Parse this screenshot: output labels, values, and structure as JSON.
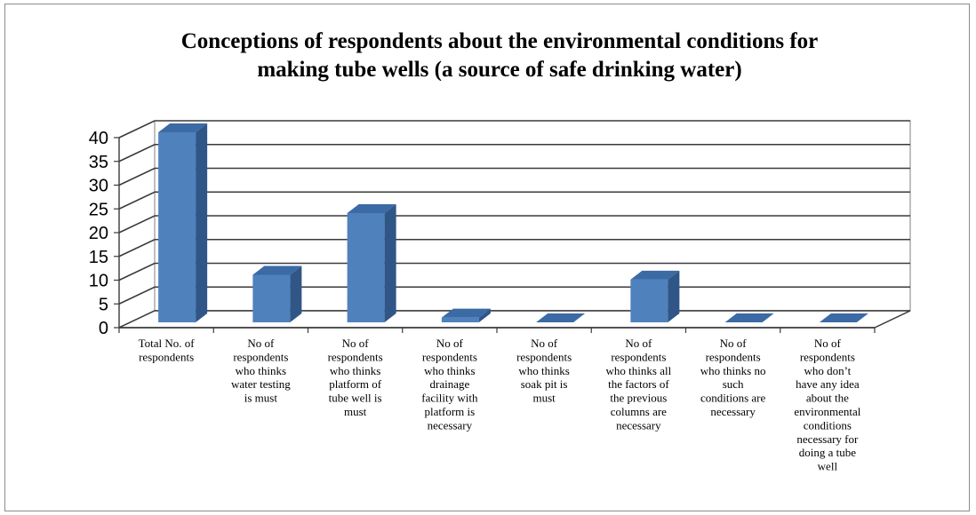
{
  "chart_data": {
    "type": "bar",
    "title_lines": [
      "Conceptions of respondents about the environmental conditions for",
      "making tube wells (a source of safe drinking water)"
    ],
    "xlabel": "",
    "ylabel": "",
    "ylim": [
      0,
      40
    ],
    "yticks": [
      0,
      5,
      10,
      15,
      20,
      25,
      30,
      35,
      40
    ],
    "grid": true,
    "legend": "none",
    "bar_color": "#4f81bd",
    "categories": [
      [
        "Total No. of",
        "respondents"
      ],
      [
        "No of",
        "respondents",
        "who thinks",
        "water testing",
        "is must"
      ],
      [
        "No of",
        "respondents",
        "who thinks",
        "platform of",
        "tube well is",
        "must"
      ],
      [
        "No of",
        "respondents",
        "who thinks",
        "drainage",
        "facility with",
        "platform is",
        "necessary"
      ],
      [
        "No of",
        "respondents",
        "who thinks",
        "soak pit is",
        "must"
      ],
      [
        "No of",
        "respondents",
        "who thinks all",
        "the factors of",
        "the previous",
        "columns are",
        "necessary"
      ],
      [
        "No of",
        "respondents",
        "who thinks no",
        "such",
        "conditions are",
        "necessary"
      ],
      [
        "No of",
        "respondents",
        "who don’t",
        "have any idea",
        "about the",
        "environmental",
        "conditions",
        "necessary for",
        "doing a tube",
        "well"
      ]
    ],
    "values": [
      40,
      10,
      23,
      1,
      0,
      9,
      0,
      0
    ]
  }
}
